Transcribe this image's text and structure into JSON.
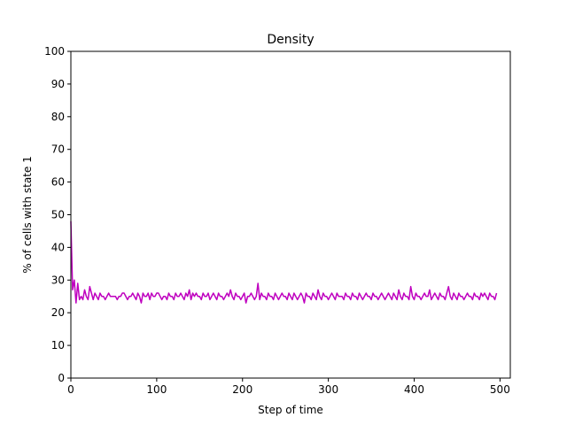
{
  "chart_data": {
    "type": "line",
    "title": "Density",
    "xlabel": "Step of time",
    "ylabel": "% of cells with state 1",
    "xlim": [
      0,
      512
    ],
    "ylim": [
      0,
      100
    ],
    "x_ticks": [
      0,
      100,
      200,
      300,
      400,
      500
    ],
    "y_ticks": [
      0,
      10,
      20,
      30,
      40,
      50,
      60,
      70,
      80,
      90,
      100
    ],
    "grid": false,
    "series": [
      {
        "color": "#bf00bf",
        "x_start": 0,
        "x_step": 2,
        "values": [
          48,
          27,
          30,
          23,
          29,
          24,
          25,
          24,
          27,
          25,
          24,
          28,
          26,
          24,
          26,
          25,
          24,
          26,
          25,
          25,
          24,
          25,
          26,
          25,
          25,
          25,
          25,
          24,
          25,
          25,
          26,
          26,
          25,
          24,
          25,
          25,
          26,
          25,
          24,
          26,
          25,
          23,
          26,
          25,
          25,
          26,
          24,
          26,
          25,
          25,
          26,
          26,
          25,
          24,
          25,
          25,
          24,
          26,
          25,
          25,
          24,
          26,
          25,
          25,
          26,
          25,
          24,
          26,
          25,
          27,
          24,
          26,
          25,
          26,
          25,
          25,
          24,
          26,
          25,
          25,
          26,
          24,
          25,
          26,
          25,
          24,
          26,
          25,
          25,
          24,
          25,
          26,
          25,
          27,
          25,
          24,
          26,
          25,
          25,
          24,
          25,
          26,
          23,
          25,
          25,
          26,
          25,
          24,
          25,
          29,
          24,
          26,
          25,
          25,
          24,
          26,
          25,
          25,
          24,
          26,
          25,
          24,
          25,
          26,
          25,
          25,
          24,
          26,
          25,
          24,
          26,
          25,
          24,
          25,
          26,
          25,
          23,
          26,
          25,
          25,
          24,
          26,
          25,
          24,
          27,
          25,
          24,
          26,
          25,
          25,
          24,
          25,
          26,
          25,
          24,
          26,
          25,
          25,
          25,
          24,
          26,
          25,
          25,
          24,
          26,
          25,
          25,
          24,
          26,
          25,
          24,
          25,
          26,
          25,
          25,
          24,
          26,
          25,
          25,
          24,
          25,
          26,
          25,
          24,
          25,
          26,
          25,
          24,
          26,
          25,
          24,
          27,
          25,
          24,
          26,
          25,
          25,
          24,
          28,
          25,
          24,
          26,
          25,
          25,
          24,
          25,
          26,
          25,
          25,
          27,
          24,
          25,
          26,
          25,
          24,
          26,
          25,
          25,
          24,
          26,
          28,
          25,
          24,
          26,
          25,
          24,
          26,
          25,
          25,
          24,
          25,
          26,
          25,
          25,
          24,
          26,
          25,
          25,
          24,
          26,
          25,
          26,
          25,
          24,
          26,
          25,
          25,
          24,
          26
        ]
      }
    ]
  }
}
